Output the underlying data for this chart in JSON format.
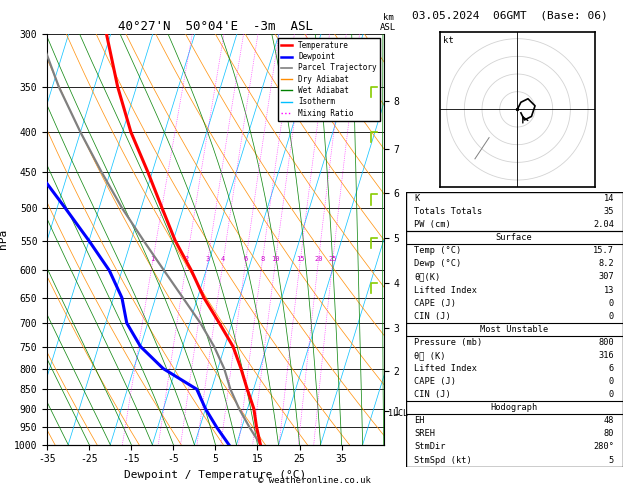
{
  "title_left": "40°27'N  50°04'E  -3m  ASL",
  "title_right": "03.05.2024  06GMT  (Base: 06)",
  "credit": "© weatheronline.co.uk",
  "xlabel": "Dewpoint / Temperature (°C)",
  "ylabel_left": "hPa",
  "pressure_levels": [
    300,
    350,
    400,
    450,
    500,
    550,
    600,
    650,
    700,
    750,
    800,
    850,
    900,
    950,
    1000
  ],
  "temp_data": {
    "pressure": [
      1000,
      950,
      900,
      850,
      800,
      750,
      700,
      650,
      600,
      550,
      500,
      450,
      400,
      350,
      300
    ],
    "temperature": [
      15.7,
      13.5,
      11.5,
      8.5,
      5.5,
      2.0,
      -3.0,
      -8.5,
      -13.5,
      -19.5,
      -25.0,
      -31.0,
      -38.0,
      -44.5,
      -51.0
    ]
  },
  "dewp_data": {
    "pressure": [
      1000,
      950,
      900,
      850,
      800,
      750,
      700,
      650,
      600,
      550,
      500,
      450,
      400,
      350,
      300
    ],
    "dewpoint": [
      8.2,
      4.0,
      0.0,
      -3.5,
      -13.0,
      -20.0,
      -25.0,
      -28.0,
      -33.0,
      -40.0,
      -48.0,
      -57.0,
      -64.0,
      -68.0,
      -72.0
    ]
  },
  "parcel_data": {
    "pressure": [
      1000,
      950,
      900,
      850,
      800,
      750,
      700,
      650,
      600,
      550,
      500,
      450,
      400,
      350,
      300
    ],
    "temperature": [
      15.7,
      11.8,
      8.0,
      4.5,
      1.5,
      -2.5,
      -7.5,
      -13.5,
      -20.0,
      -27.0,
      -34.5,
      -42.0,
      -50.0,
      -58.5,
      -67.0
    ]
  },
  "t_min": -35,
  "t_max": 40,
  "skew": 25,
  "mixing_ratio_lines": [
    1,
    2,
    3,
    4,
    6,
    8,
    10,
    15,
    20,
    25
  ],
  "km_ticks": [
    1,
    2,
    3,
    4,
    5,
    6,
    7,
    8
  ],
  "km_pressures": [
    905,
    805,
    710,
    622,
    545,
    478,
    420,
    365
  ],
  "lcl_pressure": 912,
  "hodo_u": [
    0,
    1,
    3,
    5,
    4,
    2,
    1
  ],
  "hodo_v": [
    0,
    2,
    3,
    1,
    -2,
    -3,
    -1
  ],
  "hodo_u_gray": [
    -8,
    -10,
    -12
  ],
  "hodo_v_gray": [
    -8,
    -11,
    -14
  ],
  "colors": {
    "temperature": "#ff0000",
    "dewpoint": "#0000ff",
    "parcel": "#808080",
    "dry_adiabat": "#ff8c00",
    "wet_adiabat": "#008000",
    "isotherm": "#00bfff",
    "mixing_ratio": "#ff00ff",
    "background": "#ffffff",
    "grid": "#000000"
  }
}
